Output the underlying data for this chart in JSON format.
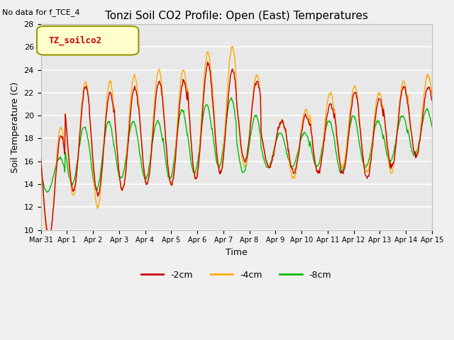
{
  "title": "Tonzi Soil CO2 Profile: Open (East) Temperatures",
  "xlabel": "Time",
  "ylabel": "Soil Temperature (C)",
  "no_data_text": "No data for f_TCE_4",
  "legend_label": "TZ_soilco2",
  "ylim": [
    10,
    28
  ],
  "yticks": [
    10,
    12,
    14,
    16,
    18,
    20,
    22,
    24,
    26,
    28
  ],
  "series_labels": [
    "-2cm",
    "-4cm",
    "-8cm"
  ],
  "series_colors": [
    "#cc0000",
    "#ffaa00",
    "#00bb00"
  ],
  "fig_bg_color": "#f0f0f0",
  "plot_bg_color": "#e8e8e8",
  "x_tick_labels": [
    "Mar 31",
    "Apr 1",
    "Apr 2",
    "Apr 3",
    "Apr 4",
    "Apr 5",
    "Apr 6",
    "Apr 7",
    "Apr 8",
    "Apr 9",
    "Apr 10",
    "Apr 11",
    "Apr 12",
    "Apr 13",
    "Apr 14",
    "Apr 15"
  ],
  "n_days": 16,
  "points_per_day": 48,
  "day_means_2cm": [
    13.8,
    18.0,
    17.5,
    18.0,
    18.5,
    18.5,
    19.5,
    19.5,
    19.5,
    17.5,
    17.5,
    18.0,
    18.5,
    18.0,
    19.0,
    19.5
  ],
  "day_amps_2cm": [
    4.5,
    4.5,
    4.5,
    4.5,
    4.5,
    4.5,
    5.0,
    4.5,
    3.5,
    2.0,
    2.5,
    3.0,
    3.5,
    3.5,
    3.5,
    3.0
  ],
  "day_means_4cm": [
    14.0,
    18.0,
    17.5,
    18.5,
    19.0,
    19.0,
    20.0,
    20.5,
    19.5,
    17.5,
    17.5,
    18.5,
    19.0,
    18.5,
    19.0,
    20.0
  ],
  "day_amps_4cm": [
    5.0,
    5.0,
    5.5,
    5.0,
    5.0,
    5.0,
    5.5,
    5.5,
    4.0,
    2.0,
    3.0,
    3.5,
    3.5,
    3.5,
    4.0,
    3.5
  ],
  "day_means_8cm": [
    14.8,
    16.5,
    16.5,
    17.0,
    17.0,
    17.5,
    18.0,
    18.5,
    17.5,
    17.0,
    17.0,
    17.5,
    17.5,
    17.5,
    18.0,
    18.5
  ],
  "day_amps_8cm": [
    1.5,
    2.5,
    3.0,
    2.5,
    2.5,
    3.0,
    3.0,
    3.0,
    2.5,
    1.5,
    1.5,
    2.0,
    2.5,
    2.0,
    2.0,
    2.0
  ],
  "phase_2cm": 0.0,
  "phase_4cm": 0.01,
  "phase_8cm": 0.06
}
